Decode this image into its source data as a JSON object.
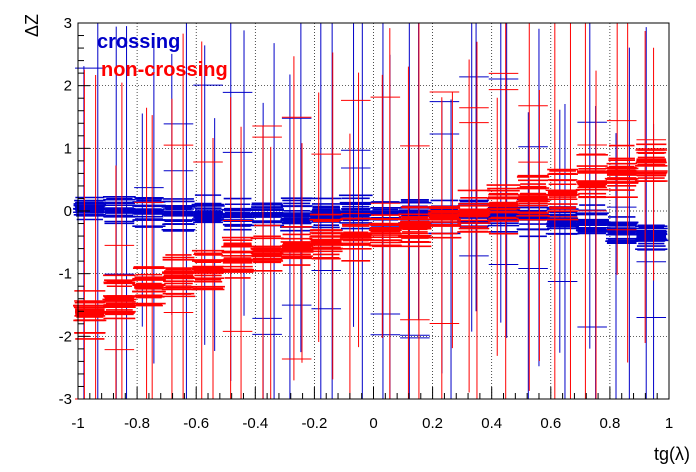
{
  "chart_data": {
    "type": "scatter",
    "title": "",
    "xlabel": "tg(λ)",
    "ylabel": "ΔZ",
    "xlim": [
      -1,
      1
    ],
    "ylim": [
      -3,
      3
    ],
    "x_ticks": [
      -1,
      -0.8,
      -0.6,
      -0.4,
      -0.2,
      0,
      0.2,
      0.4,
      0.6,
      0.8,
      1
    ],
    "x_tick_labels": [
      "-1",
      "-0.8",
      "-0.6",
      "-0.4",
      "-0.2",
      "0",
      "0.2",
      "0.4",
      "0.6",
      "0.8",
      "1"
    ],
    "y_ticks": [
      -3,
      -2,
      -1,
      0,
      1,
      2,
      3
    ],
    "y_tick_labels": [
      "-3",
      "-2",
      "-1",
      "0",
      "1",
      "2",
      "3"
    ],
    "grid": true,
    "legend_position": "top-left",
    "series": [
      {
        "name": "crossing",
        "color": "#0000c8",
        "marker": "errorbar-cross",
        "x": [
          -0.96,
          -0.86,
          -0.76,
          -0.66,
          -0.56,
          -0.46,
          -0.36,
          -0.26,
          -0.16,
          -0.06,
          0.04,
          0.14,
          0.24,
          0.34,
          0.44,
          0.54,
          0.64,
          0.74,
          0.84,
          0.94
        ],
        "y": [
          0.05,
          0.02,
          -0.02,
          -0.05,
          -0.06,
          -0.07,
          -0.07,
          -0.06,
          -0.05,
          -0.04,
          -0.03,
          -0.03,
          -0.04,
          -0.06,
          -0.08,
          -0.1,
          -0.14,
          -0.2,
          -0.3,
          -0.4
        ]
      },
      {
        "name": "non-crossing",
        "color": "#ff0000",
        "marker": "errorbar-cross",
        "x": [
          -0.96,
          -0.86,
          -0.76,
          -0.66,
          -0.56,
          -0.46,
          -0.36,
          -0.26,
          -0.16,
          -0.06,
          0.04,
          0.14,
          0.24,
          0.34,
          0.44,
          0.54,
          0.64,
          0.74,
          0.84,
          0.94
        ],
        "y": [
          -1.6,
          -1.4,
          -1.2,
          -1.05,
          -0.95,
          -0.8,
          -0.7,
          -0.6,
          -0.5,
          -0.38,
          -0.3,
          -0.2,
          -0.1,
          0.0,
          0.1,
          0.2,
          0.3,
          0.45,
          0.6,
          0.8
        ]
      }
    ]
  }
}
